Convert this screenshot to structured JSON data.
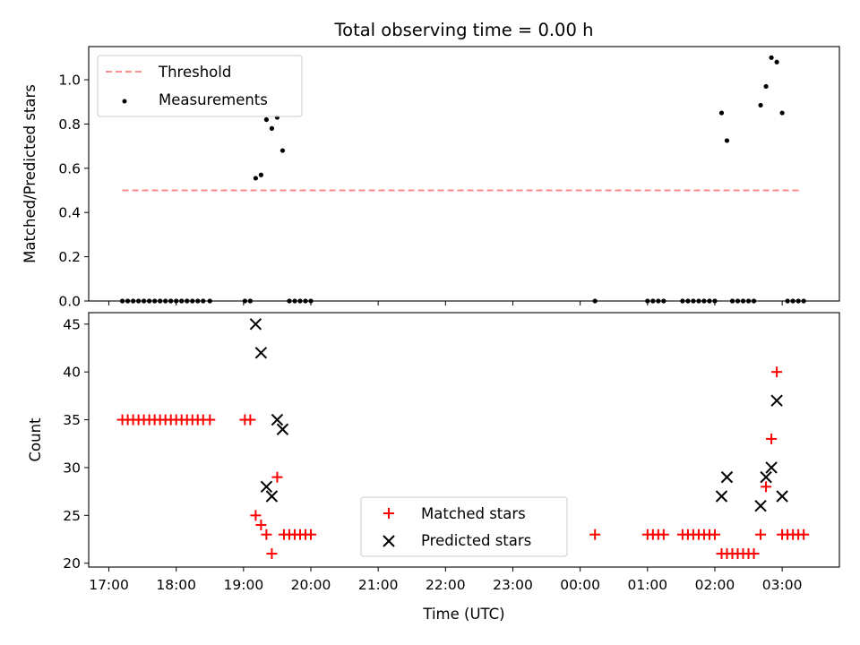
{
  "chart_data": [
    {
      "type": "scatter",
      "title": "Total observing time = 0.00 h",
      "xlabel": "",
      "ylabel": "Matched/Predicted stars",
      "xlim": [
        16.7,
        27.85
      ],
      "ylim": [
        0,
        1.15
      ],
      "yticks": [
        "0.0",
        "0.2",
        "0.4",
        "0.6",
        "0.8",
        "1.0"
      ],
      "yticks_values": [
        0,
        0.2,
        0.4,
        0.6,
        0.8,
        1.0
      ],
      "xticks_values": [
        17,
        18,
        19,
        20,
        21,
        22,
        23,
        24,
        25,
        26,
        27
      ],
      "legend_position": "upper-left",
      "threshold": {
        "name": "Threshold",
        "value": 0.5,
        "x": [
          17.2,
          27.3
        ],
        "color": "#ff7f7f",
        "style": "dashed"
      },
      "series": [
        {
          "name": "Measurements",
          "color": "#000000",
          "marker": "dot",
          "points": [
            [
              17.2,
              0
            ],
            [
              17.28,
              0
            ],
            [
              17.36,
              0
            ],
            [
              17.44,
              0
            ],
            [
              17.52,
              0
            ],
            [
              17.6,
              0
            ],
            [
              17.68,
              0
            ],
            [
              17.76,
              0
            ],
            [
              17.84,
              0
            ],
            [
              17.92,
              0
            ],
            [
              18.0,
              0
            ],
            [
              18.08,
              0
            ],
            [
              18.16,
              0
            ],
            [
              18.24,
              0
            ],
            [
              18.32,
              0
            ],
            [
              18.4,
              0
            ],
            [
              18.5,
              0
            ],
            [
              19.02,
              0
            ],
            [
              19.1,
              0
            ],
            [
              19.18,
              0.555
            ],
            [
              19.26,
              0.57
            ],
            [
              19.34,
              0.82
            ],
            [
              19.42,
              0.78
            ],
            [
              19.5,
              0.83
            ],
            [
              19.58,
              0.68
            ],
            [
              19.68,
              0
            ],
            [
              19.76,
              0
            ],
            [
              19.84,
              0
            ],
            [
              19.92,
              0
            ],
            [
              20.0,
              0
            ],
            [
              24.22,
              0
            ],
            [
              25.0,
              0
            ],
            [
              25.08,
              0
            ],
            [
              25.16,
              0
            ],
            [
              25.24,
              0
            ],
            [
              25.52,
              0
            ],
            [
              25.6,
              0
            ],
            [
              25.68,
              0
            ],
            [
              25.76,
              0
            ],
            [
              25.84,
              0
            ],
            [
              25.92,
              0
            ],
            [
              26.0,
              0
            ],
            [
              26.1,
              0.85
            ],
            [
              26.18,
              0.725
            ],
            [
              26.26,
              0
            ],
            [
              26.34,
              0
            ],
            [
              26.42,
              0
            ],
            [
              26.5,
              0
            ],
            [
              26.58,
              0
            ],
            [
              26.68,
              0.885
            ],
            [
              26.76,
              0.97
            ],
            [
              26.84,
              1.1
            ],
            [
              26.92,
              1.08
            ],
            [
              27.0,
              0.85
            ],
            [
              27.08,
              0
            ],
            [
              27.16,
              0
            ],
            [
              27.24,
              0
            ],
            [
              27.32,
              0
            ]
          ]
        }
      ]
    },
    {
      "type": "scatter",
      "title": "",
      "xlabel": "Time (UTC)",
      "ylabel": "Count",
      "xlim": [
        16.7,
        27.85
      ],
      "ylim": [
        19.6,
        46.2
      ],
      "yticks": [
        "20",
        "25",
        "30",
        "35",
        "40",
        "45"
      ],
      "yticks_values": [
        20,
        25,
        30,
        35,
        40,
        45
      ],
      "xticks": [
        "17:00",
        "18:00",
        "19:00",
        "20:00",
        "21:00",
        "22:00",
        "23:00",
        "00:00",
        "01:00",
        "02:00",
        "03:00"
      ],
      "xticks_values": [
        17,
        18,
        19,
        20,
        21,
        22,
        23,
        24,
        25,
        26,
        27
      ],
      "legend_position": "lower-center",
      "series": [
        {
          "name": "Matched stars",
          "color": "#ff0000",
          "marker": "plus",
          "points": [
            [
              17.2,
              35
            ],
            [
              17.28,
              35
            ],
            [
              17.36,
              35
            ],
            [
              17.44,
              35
            ],
            [
              17.52,
              35
            ],
            [
              17.6,
              35
            ],
            [
              17.68,
              35
            ],
            [
              17.76,
              35
            ],
            [
              17.84,
              35
            ],
            [
              17.92,
              35
            ],
            [
              18.0,
              35
            ],
            [
              18.08,
              35
            ],
            [
              18.16,
              35
            ],
            [
              18.24,
              35
            ],
            [
              18.32,
              35
            ],
            [
              18.4,
              35
            ],
            [
              18.5,
              35
            ],
            [
              19.02,
              35
            ],
            [
              19.1,
              35
            ],
            [
              19.18,
              25
            ],
            [
              19.26,
              24
            ],
            [
              19.34,
              23
            ],
            [
              19.42,
              21
            ],
            [
              19.5,
              29
            ],
            [
              19.6,
              23
            ],
            [
              19.68,
              23
            ],
            [
              19.76,
              23
            ],
            [
              19.84,
              23
            ],
            [
              19.92,
              23
            ],
            [
              20.0,
              23
            ],
            [
              24.22,
              23
            ],
            [
              25.0,
              23
            ],
            [
              25.08,
              23
            ],
            [
              25.16,
              23
            ],
            [
              25.24,
              23
            ],
            [
              25.52,
              23
            ],
            [
              25.6,
              23
            ],
            [
              25.68,
              23
            ],
            [
              25.76,
              23
            ],
            [
              25.84,
              23
            ],
            [
              25.92,
              23
            ],
            [
              26.0,
              23
            ],
            [
              26.1,
              21
            ],
            [
              26.18,
              21
            ],
            [
              26.26,
              21
            ],
            [
              26.34,
              21
            ],
            [
              26.42,
              21
            ],
            [
              26.5,
              21
            ],
            [
              26.58,
              21
            ],
            [
              26.68,
              23
            ],
            [
              26.76,
              28
            ],
            [
              26.84,
              33
            ],
            [
              26.92,
              40
            ],
            [
              27.0,
              23
            ],
            [
              27.08,
              23
            ],
            [
              27.16,
              23
            ],
            [
              27.24,
              23
            ],
            [
              27.32,
              23
            ]
          ]
        },
        {
          "name": "Predicted stars",
          "color": "#000000",
          "marker": "x",
          "points": [
            [
              19.18,
              45
            ],
            [
              19.26,
              42
            ],
            [
              19.34,
              28
            ],
            [
              19.42,
              27
            ],
            [
              19.5,
              35
            ],
            [
              19.58,
              34
            ],
            [
              26.1,
              27
            ],
            [
              26.18,
              29
            ],
            [
              26.68,
              26
            ],
            [
              26.76,
              29
            ],
            [
              26.84,
              30
            ],
            [
              26.92,
              37
            ],
            [
              27.0,
              27
            ]
          ]
        }
      ]
    }
  ]
}
